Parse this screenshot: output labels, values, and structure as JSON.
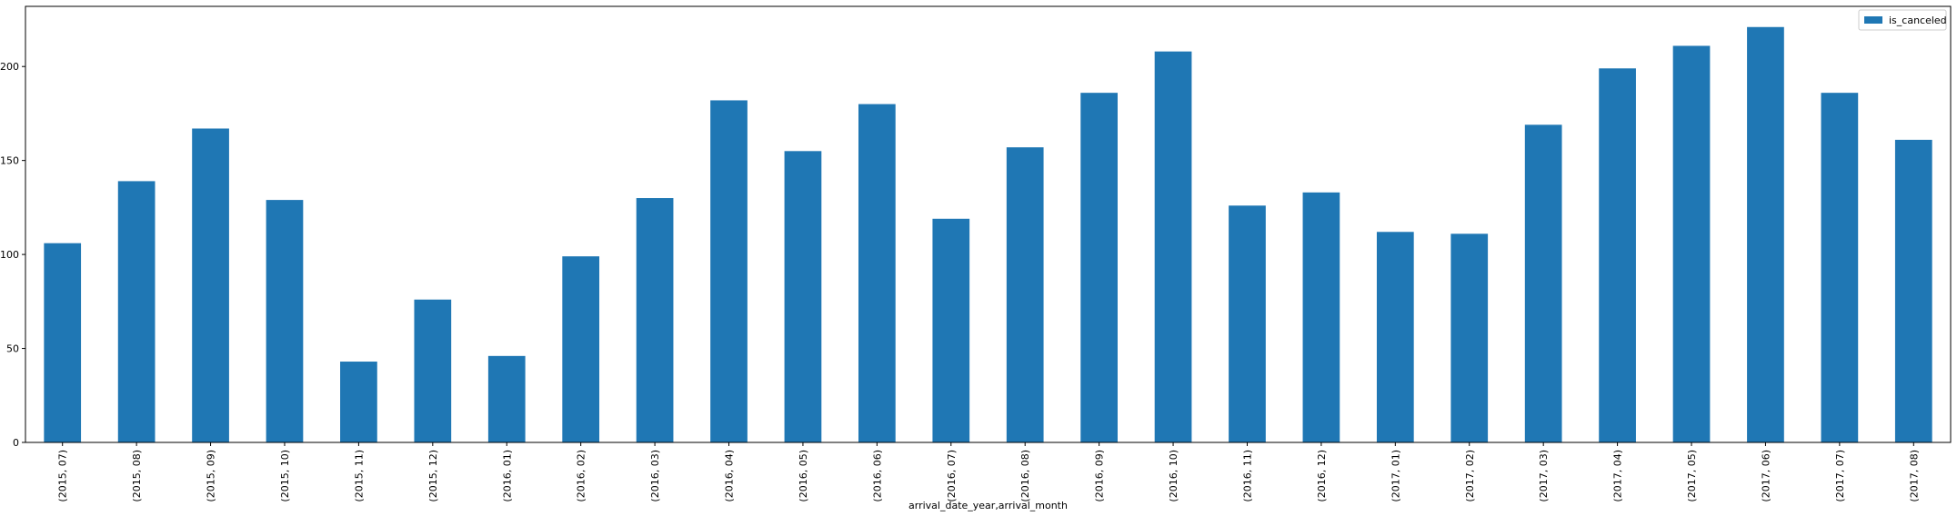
{
  "chart_data": {
    "type": "bar",
    "categories": [
      "(2015, 07)",
      "(2015, 08)",
      "(2015, 09)",
      "(2015, 10)",
      "(2015, 11)",
      "(2015, 12)",
      "(2016, 01)",
      "(2016, 02)",
      "(2016, 03)",
      "(2016, 04)",
      "(2016, 05)",
      "(2016, 06)",
      "(2016, 07)",
      "(2016, 08)",
      "(2016, 09)",
      "(2016, 10)",
      "(2016, 11)",
      "(2016, 12)",
      "(2017, 01)",
      "(2017, 02)",
      "(2017, 03)",
      "(2017, 04)",
      "(2017, 05)",
      "(2017, 06)",
      "(2017, 07)",
      "(2017, 08)"
    ],
    "series": [
      {
        "name": "is_canceled",
        "color": "#1f77b4",
        "values": [
          106,
          139,
          167,
          129,
          43,
          76,
          46,
          99,
          130,
          182,
          155,
          180,
          119,
          157,
          186,
          208,
          126,
          133,
          112,
          111,
          169,
          199,
          211,
          221,
          186,
          161
        ]
      }
    ],
    "title": "",
    "xlabel": "arrival_date_year,arrival_month",
    "ylabel": "",
    "ylim": [
      0,
      232
    ],
    "yticks": [
      0,
      50,
      100,
      150,
      200
    ],
    "grid": false,
    "legend": "top-right"
  }
}
